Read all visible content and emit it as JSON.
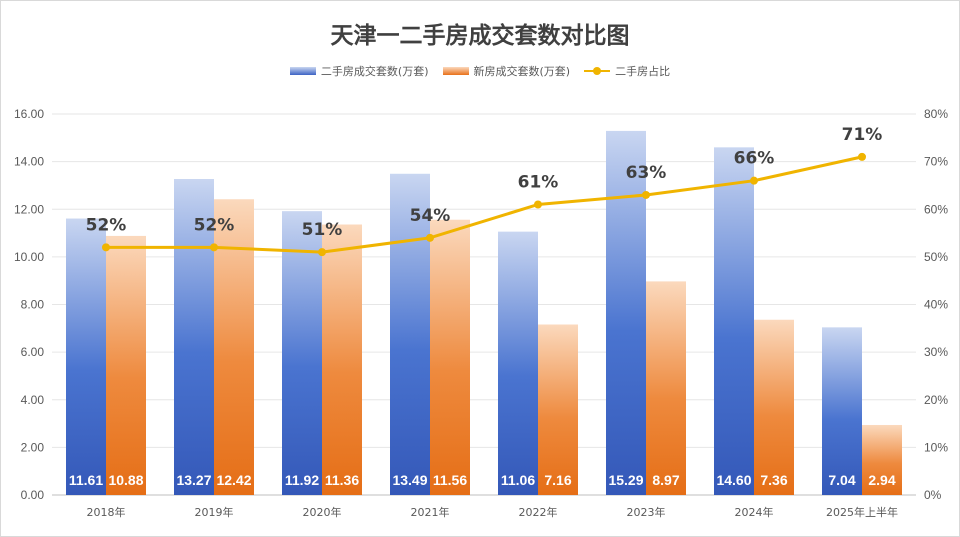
{
  "chart_data": {
    "type": "bar",
    "title": "天津一二手房成交套数对比图",
    "categories": [
      "2018年",
      "2019年",
      "2020年",
      "2021年",
      "2022年",
      "2023年",
      "2024年",
      "2025年上半年"
    ],
    "series": [
      {
        "name": "二手房成交套数(万套)",
        "type": "bar",
        "axis": "left",
        "values": [
          11.61,
          13.27,
          11.92,
          13.49,
          11.06,
          15.29,
          14.6,
          7.04
        ],
        "labels": [
          "11.61",
          "13.27",
          "11.92",
          "13.49",
          "11.06",
          "15.29",
          "14.60",
          "7.04"
        ]
      },
      {
        "name": "新房成交套数(万套)",
        "type": "bar",
        "axis": "left",
        "values": [
          10.88,
          12.42,
          11.36,
          11.56,
          7.16,
          8.97,
          7.36,
          2.94
        ],
        "labels": [
          "10.88",
          "12.42",
          "11.36",
          "11.56",
          "7.16",
          "8.97",
          "7.36",
          "2.94"
        ]
      },
      {
        "name": "二手房占比",
        "type": "line",
        "axis": "right",
        "values": [
          52,
          52,
          51,
          54,
          61,
          63,
          66,
          71
        ],
        "labels": [
          "52%",
          "52%",
          "51%",
          "54%",
          "61%",
          "63%",
          "66%",
          "71%"
        ]
      }
    ],
    "left_axis": {
      "min": 0,
      "max": 16,
      "ticks": [
        "0.00",
        "2.00",
        "4.00",
        "6.00",
        "8.00",
        "10.00",
        "12.00",
        "14.00",
        "16.00"
      ]
    },
    "right_axis": {
      "min": 0,
      "max": 80,
      "ticks": [
        "0%",
        "10%",
        "20%",
        "30%",
        "40%",
        "50%",
        "60%",
        "70%",
        "80%"
      ]
    },
    "legend_position": "top",
    "grid": true,
    "colors": {
      "secondhand_top": "#c9d6f1",
      "secondhand_bottom": "#3d63c4",
      "new_top": "#fbd9bd",
      "new_bottom": "#e8711a",
      "ratio_line": "#f0b400"
    }
  }
}
